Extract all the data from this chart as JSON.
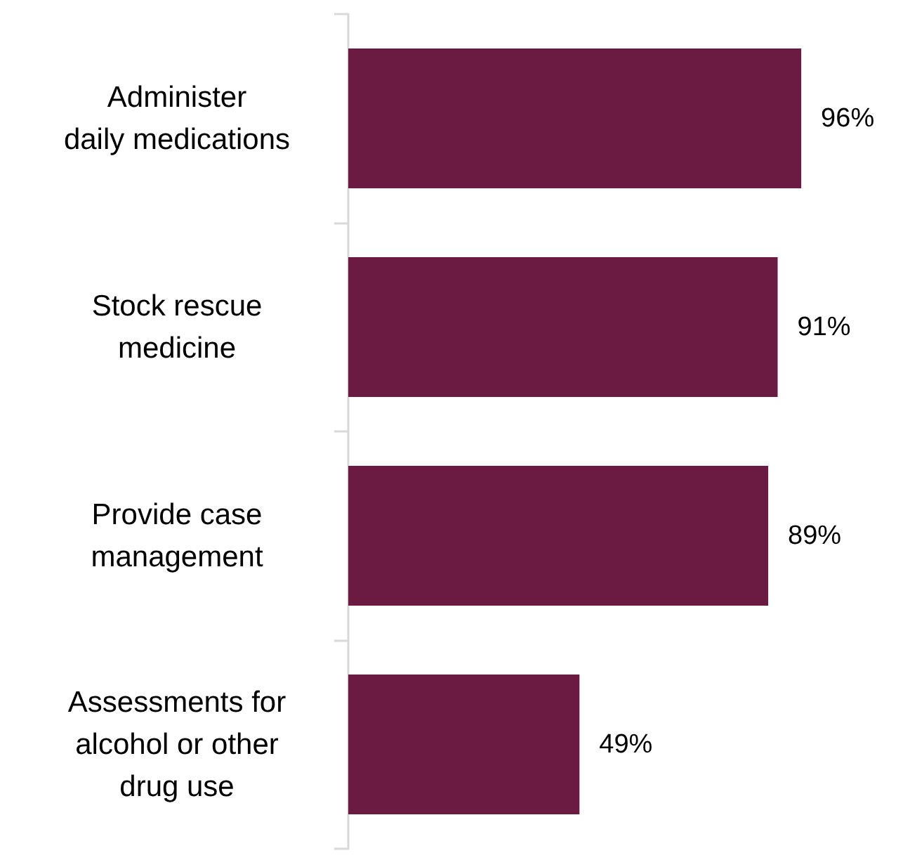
{
  "chart_data": {
    "type": "bar",
    "orientation": "horizontal",
    "categories": [
      "Administer\ndaily medications",
      "Stock rescue\nmedicine",
      "Provide case\nmanagement",
      "Assessments for\nalcohol or other\ndrug use"
    ],
    "values": [
      96,
      91,
      89,
      49
    ],
    "value_labels": [
      "96%",
      "91%",
      "89%",
      "49%"
    ],
    "color": "#6b1a41"
  }
}
